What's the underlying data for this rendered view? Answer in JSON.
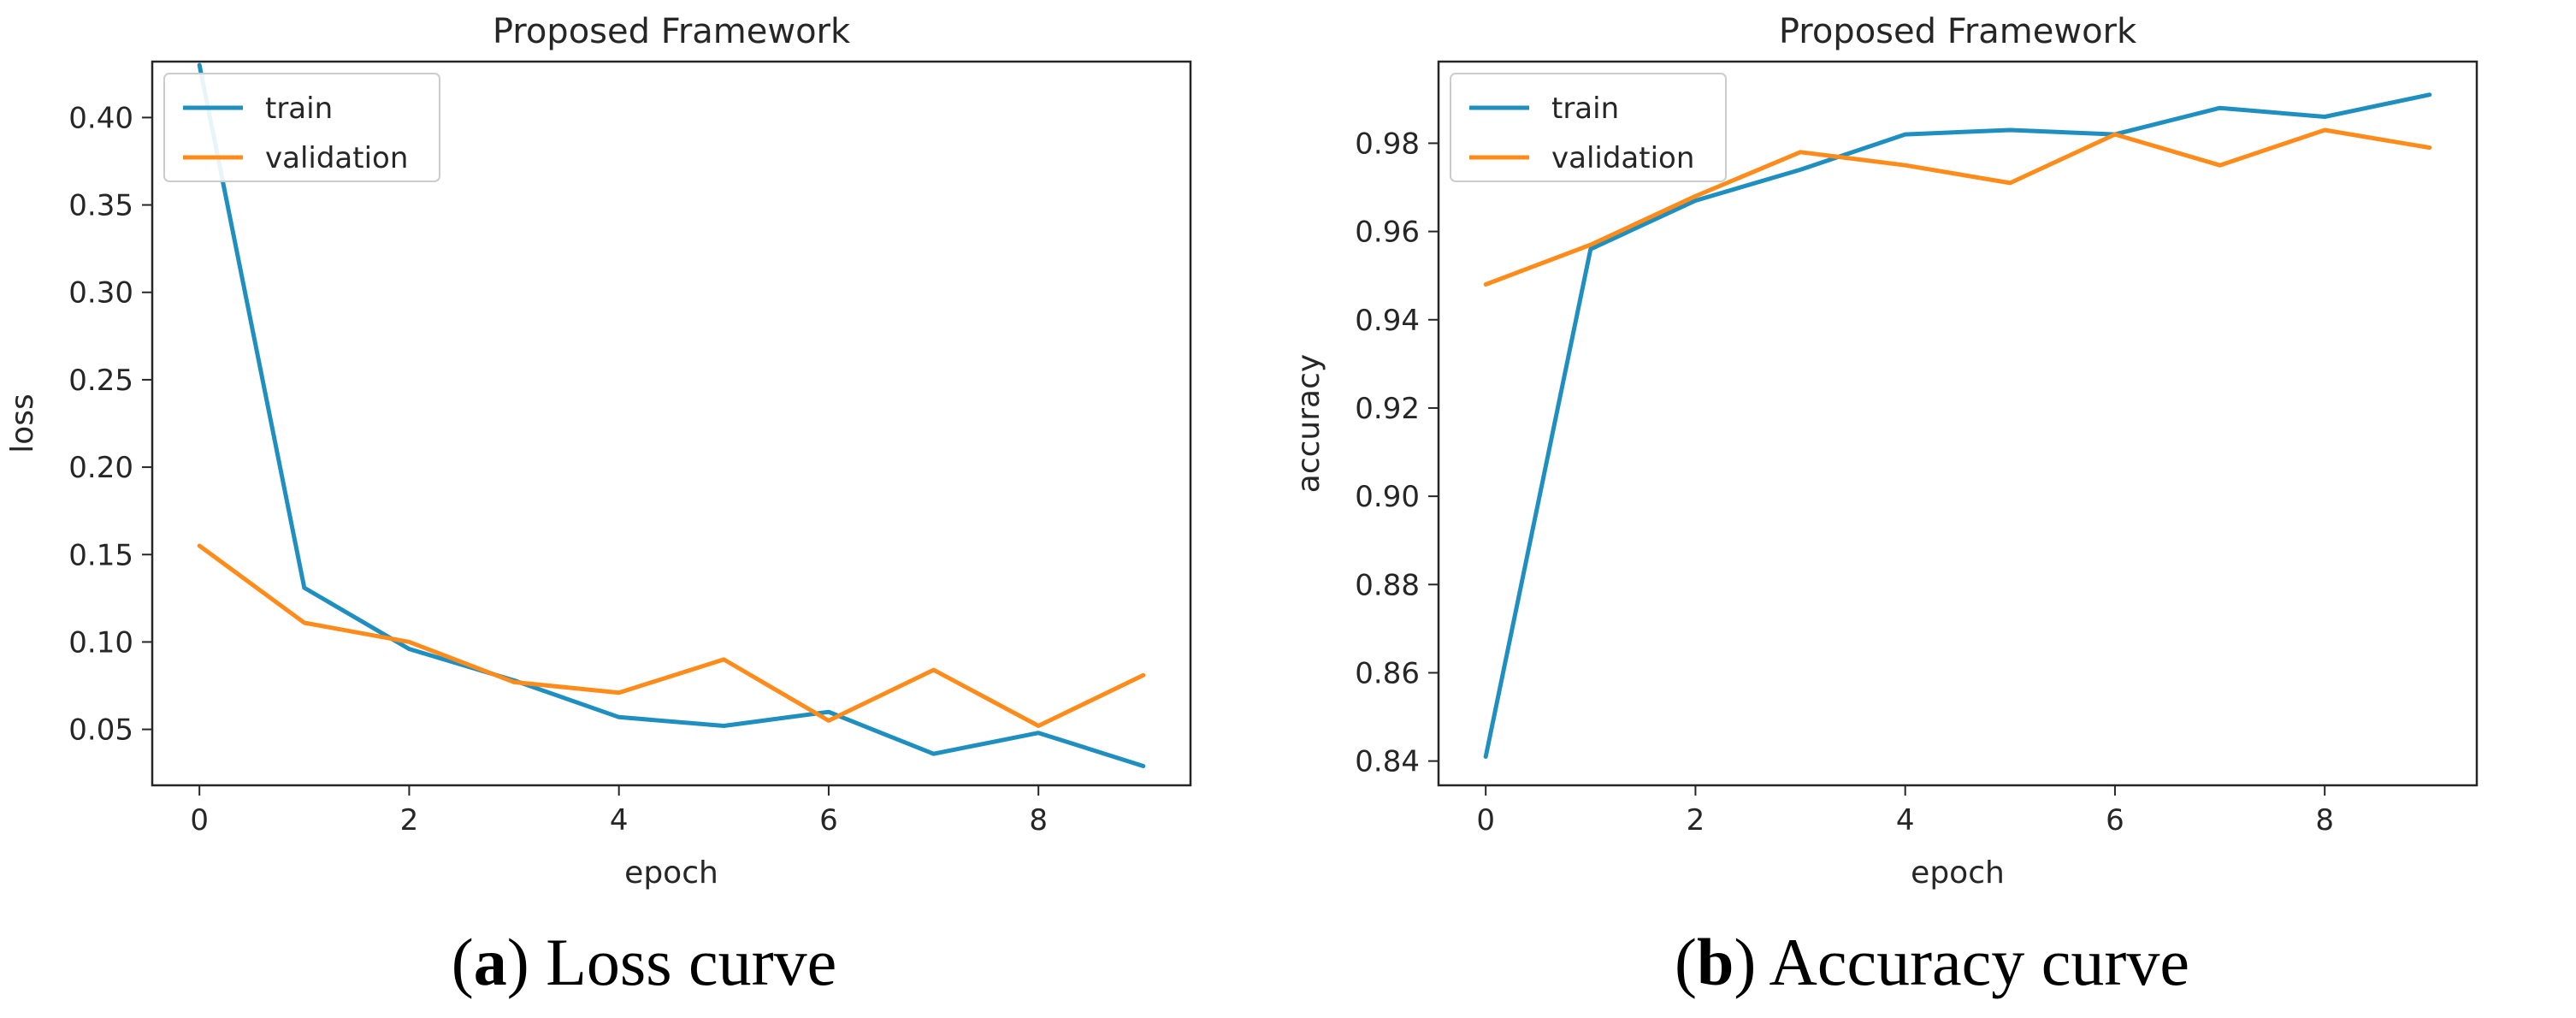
{
  "chart_data": [
    {
      "type": "line",
      "title": "Proposed Framework",
      "xlabel": "epoch",
      "ylabel": "loss",
      "xlim": [
        -0.45,
        9.45
      ],
      "ylim": [
        0.018,
        0.432
      ],
      "xticks": [
        0,
        2,
        4,
        6,
        8
      ],
      "xtick_labels": [
        "0",
        "2",
        "4",
        "6",
        "8"
      ],
      "yticks": [
        0.05,
        0.1,
        0.15,
        0.2,
        0.25,
        0.3,
        0.35,
        0.4
      ],
      "ytick_labels": [
        "0.05",
        "0.10",
        "0.15",
        "0.20",
        "0.25",
        "0.30",
        "0.35",
        "0.40"
      ],
      "legend": "top-left",
      "x": [
        0,
        1,
        2,
        3,
        4,
        5,
        6,
        7,
        8,
        9
      ],
      "series": [
        {
          "name": "train",
          "color": "#1f8fc0",
          "values": [
            0.43,
            0.131,
            0.096,
            0.078,
            0.057,
            0.052,
            0.06,
            0.036,
            0.048,
            0.029
          ]
        },
        {
          "name": "validation",
          "color": "#ff8c1a",
          "values": [
            0.155,
            0.111,
            0.1,
            0.077,
            0.071,
            0.09,
            0.055,
            0.084,
            0.052,
            0.081
          ]
        }
      ]
    },
    {
      "type": "line",
      "title": "Proposed Framework",
      "xlabel": "epoch",
      "ylabel": "accuracy",
      "xlim": [
        -0.45,
        9.45
      ],
      "ylim": [
        0.8345,
        0.9985
      ],
      "xticks": [
        0,
        2,
        4,
        6,
        8
      ],
      "xtick_labels": [
        "0",
        "2",
        "4",
        "6",
        "8"
      ],
      "yticks": [
        0.84,
        0.86,
        0.88,
        0.9,
        0.92,
        0.94,
        0.96,
        0.98
      ],
      "ytick_labels": [
        "0.84",
        "0.86",
        "0.88",
        "0.90",
        "0.92",
        "0.94",
        "0.96",
        "0.98"
      ],
      "legend": "top-left",
      "x": [
        0,
        1,
        2,
        3,
        4,
        5,
        6,
        7,
        8,
        9
      ],
      "series": [
        {
          "name": "train",
          "color": "#1f8fc0",
          "values": [
            0.841,
            0.956,
            0.967,
            0.974,
            0.982,
            0.983,
            0.982,
            0.988,
            0.986,
            0.991
          ]
        },
        {
          "name": "validation",
          "color": "#ff8c1a",
          "values": [
            0.948,
            0.957,
            0.968,
            0.978,
            0.975,
            0.971,
            0.982,
            0.975,
            0.983,
            0.979
          ]
        }
      ]
    }
  ],
  "captions": [
    {
      "letter": "a",
      "text": "Loss curve"
    },
    {
      "letter": "b",
      "text": "Accuracy curve"
    }
  ]
}
